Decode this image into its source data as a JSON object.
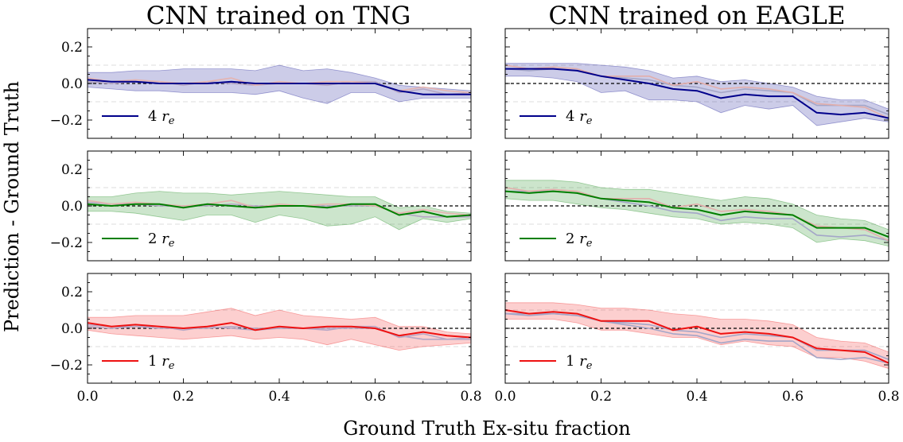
{
  "figure": {
    "xlabel": "Ground Truth Ex-situ fraction",
    "ylabel": "Prediction - Ground Truth",
    "columns": [
      "CNN trained on TNG",
      "CNN trained on EAGLE"
    ]
  },
  "colors": {
    "4": "#00008b",
    "2": "#007f00",
    "1": "#ee1111"
  },
  "chart_data": {
    "type": "line",
    "layout": "3 rows x 2 columns, shared axes",
    "xlim": [
      0.0,
      0.8
    ],
    "ylim": [
      -0.3,
      0.3
    ],
    "xticks": [
      0.0,
      0.2,
      0.4,
      0.6,
      0.8
    ],
    "xtick_labels": [
      "0.0",
      "0.2",
      "0.4",
      "0.6",
      "0.8"
    ],
    "yticks": [
      -0.2,
      0.0,
      0.2
    ],
    "ytick_labels": [
      "−0.2",
      "0.0",
      "0.2"
    ],
    "reference_lines": {
      "zero": 0.0,
      "dashed_grey": [
        -0.1,
        0.1
      ]
    },
    "x": [
      0.0,
      0.05,
      0.1,
      0.15,
      0.2,
      0.25,
      0.3,
      0.35,
      0.4,
      0.45,
      0.5,
      0.55,
      0.6,
      0.65,
      0.7,
      0.75,
      0.8
    ],
    "series": {
      "TNG": {
        "4": [
          0.02,
          0.01,
          0.01,
          0.0,
          0.0,
          0.0,
          0.01,
          0.0,
          0.0,
          0.0,
          0.0,
          0.0,
          0.0,
          -0.04,
          -0.06,
          -0.06,
          -0.06
        ],
        "2": [
          0.01,
          0.0,
          0.01,
          0.01,
          -0.01,
          0.01,
          0.0,
          -0.01,
          0.0,
          0.0,
          -0.01,
          0.01,
          0.01,
          -0.05,
          -0.03,
          -0.06,
          -0.05
        ],
        "1": [
          0.03,
          0.01,
          0.02,
          0.01,
          0.0,
          0.01,
          0.03,
          -0.01,
          0.01,
          0.0,
          0.01,
          0.01,
          0.0,
          -0.04,
          -0.02,
          -0.04,
          -0.05
        ]
      },
      "EAGLE": {
        "4": [
          0.08,
          0.08,
          0.08,
          0.07,
          0.04,
          0.02,
          0.0,
          -0.03,
          -0.04,
          -0.08,
          -0.06,
          -0.07,
          -0.07,
          -0.16,
          -0.17,
          -0.16,
          -0.19
        ],
        "2": [
          0.08,
          0.07,
          0.08,
          0.07,
          0.04,
          0.03,
          0.02,
          -0.01,
          -0.02,
          -0.05,
          -0.03,
          -0.04,
          -0.05,
          -0.12,
          -0.12,
          -0.12,
          -0.17
        ],
        "1": [
          0.1,
          0.08,
          0.09,
          0.08,
          0.04,
          0.04,
          0.04,
          -0.01,
          0.01,
          -0.03,
          -0.02,
          -0.03,
          -0.05,
          -0.11,
          -0.12,
          -0.13,
          -0.19
        ]
      }
    },
    "bands": {
      "TNG": {
        "4": {
          "lower": [
            -0.02,
            -0.03,
            -0.04,
            -0.04,
            -0.05,
            -0.05,
            -0.05,
            -0.06,
            -0.04,
            -0.08,
            -0.11,
            -0.05,
            -0.05,
            -0.1,
            -0.08,
            -0.08,
            -0.08
          ],
          "upper": [
            0.06,
            0.06,
            0.07,
            0.07,
            0.08,
            0.08,
            0.08,
            0.07,
            0.1,
            0.07,
            0.08,
            0.06,
            0.03,
            -0.01,
            -0.02,
            -0.03,
            -0.04
          ]
        },
        "2": {
          "lower": [
            -0.03,
            -0.03,
            -0.04,
            -0.06,
            -0.08,
            -0.05,
            -0.05,
            -0.09,
            -0.05,
            -0.07,
            -0.11,
            -0.1,
            -0.06,
            -0.13,
            -0.07,
            -0.09,
            -0.07
          ],
          "upper": [
            0.05,
            0.05,
            0.07,
            0.08,
            0.07,
            0.07,
            0.06,
            0.07,
            0.08,
            0.07,
            0.06,
            0.05,
            0.05,
            -0.01,
            0.0,
            -0.03,
            -0.04
          ]
        },
        "1": {
          "lower": [
            -0.01,
            -0.03,
            -0.04,
            -0.05,
            -0.06,
            -0.05,
            -0.04,
            -0.06,
            -0.05,
            -0.06,
            -0.09,
            -0.06,
            -0.09,
            -0.12,
            -0.1,
            -0.09,
            -0.08
          ],
          "upper": [
            0.06,
            0.06,
            0.07,
            0.07,
            0.07,
            0.09,
            0.11,
            0.07,
            0.1,
            0.07,
            0.06,
            0.05,
            0.06,
            0.01,
            0.01,
            -0.02,
            -0.03
          ]
        }
      },
      "EAGLE": {
        "4": {
          "lower": [
            0.04,
            0.04,
            0.03,
            0.01,
            -0.05,
            -0.04,
            -0.09,
            -0.09,
            -0.1,
            -0.16,
            -0.12,
            -0.14,
            -0.12,
            -0.23,
            -0.21,
            -0.19,
            -0.21
          ],
          "upper": [
            0.11,
            0.11,
            0.11,
            0.11,
            0.1,
            0.09,
            0.07,
            0.03,
            0.04,
            0.01,
            0.02,
            0.0,
            -0.02,
            -0.07,
            -0.09,
            -0.09,
            -0.14
          ]
        },
        "2": {
          "lower": [
            0.04,
            0.03,
            0.03,
            0.01,
            -0.01,
            -0.02,
            -0.04,
            -0.06,
            -0.07,
            -0.1,
            -0.09,
            -0.1,
            -0.12,
            -0.2,
            -0.18,
            -0.19,
            -0.22
          ],
          "upper": [
            0.14,
            0.14,
            0.14,
            0.13,
            0.1,
            0.09,
            0.09,
            0.07,
            0.05,
            0.03,
            0.05,
            0.04,
            0.01,
            -0.05,
            -0.07,
            -0.08,
            -0.13
          ]
        },
        "1": {
          "lower": [
            0.05,
            0.05,
            0.05,
            0.03,
            -0.01,
            -0.01,
            -0.03,
            -0.05,
            -0.05,
            -0.09,
            -0.07,
            -0.09,
            -0.1,
            -0.16,
            -0.16,
            -0.18,
            -0.22
          ],
          "upper": [
            0.14,
            0.14,
            0.14,
            0.13,
            0.11,
            0.11,
            0.1,
            0.08,
            0.07,
            0.05,
            0.05,
            0.04,
            0.02,
            -0.05,
            -0.07,
            -0.08,
            -0.13
          ]
        }
      }
    },
    "panels": [
      {
        "row": 0,
        "col": 0,
        "sim": "TNG",
        "highlight": "4",
        "legend": "4",
        "band": "4"
      },
      {
        "row": 1,
        "col": 0,
        "sim": "TNG",
        "highlight": "2",
        "legend": "2",
        "band": "2"
      },
      {
        "row": 2,
        "col": 0,
        "sim": "TNG",
        "highlight": "1",
        "legend": "1",
        "band": "1"
      },
      {
        "row": 0,
        "col": 1,
        "sim": "EAGLE",
        "highlight": "4",
        "legend": "4",
        "band": "4"
      },
      {
        "row": 1,
        "col": 1,
        "sim": "EAGLE",
        "highlight": "2",
        "legend": "2",
        "band": "2"
      },
      {
        "row": 2,
        "col": 1,
        "sim": "EAGLE",
        "highlight": "1",
        "legend": "1",
        "band": "1"
      }
    ],
    "legend_unit": "r",
    "legend_subscript": "e"
  }
}
